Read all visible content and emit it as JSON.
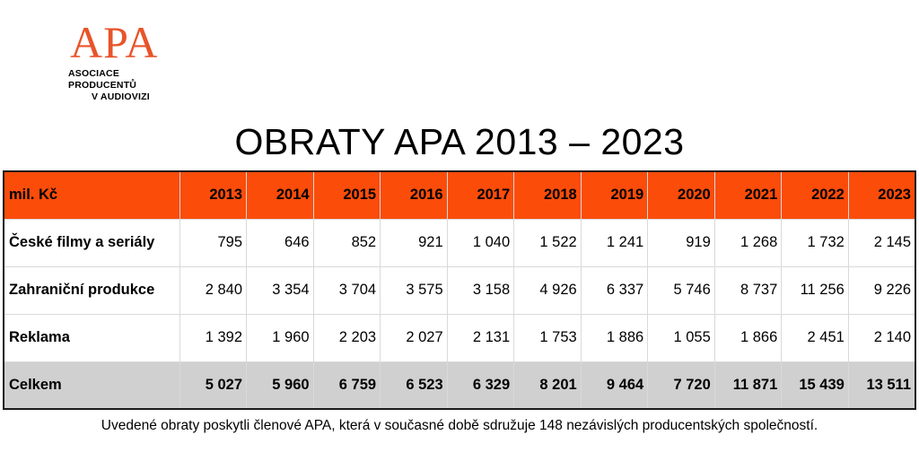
{
  "logo": {
    "mark": "APA",
    "line1": "ASOCIACE PRODUCENTŮ",
    "line2": "V AUDIOVIZI"
  },
  "title": "OBRATY APA 2013 – 2023",
  "table": {
    "unit_label": "mil. Kč",
    "years": [
      "2013",
      "2014",
      "2015",
      "2016",
      "2017",
      "2018",
      "2019",
      "2020",
      "2021",
      "2022",
      "2023"
    ],
    "rows": [
      {
        "label": "České filmy a seriály",
        "values": [
          "795",
          "646",
          "852",
          "921",
          "1 040",
          "1 522",
          "1 241",
          "919",
          "1 268",
          "1 732",
          "2 145"
        ]
      },
      {
        "label": "Zahraniční produkce",
        "values": [
          "2 840",
          "3 354",
          "3 704",
          "3 575",
          "3 158",
          "4 926",
          "6 337",
          "5 746",
          "8 737",
          "11 256",
          "9 226"
        ]
      },
      {
        "label": "Reklama",
        "values": [
          "1 392",
          "1 960",
          "2 203",
          "2 027",
          "2 131",
          "1 753",
          "1 886",
          "1 055",
          "1 866",
          "2 451",
          "2 140"
        ]
      }
    ],
    "total": {
      "label": "Celkem",
      "values": [
        "5 027",
        "5 960",
        "6 759",
        "6 523",
        "6 329",
        "8 201",
        "9 464",
        "7 720",
        "11 871",
        "15 439",
        "13 511"
      ]
    }
  },
  "footnote": "Uvedené obraty poskytli členové APA, která v současné době sdružuje 148 nezávislých producentských společností.",
  "colors": {
    "header_bg": "#fb4c0a",
    "total_bg": "#d0d0d0",
    "logo": "#e8542a"
  }
}
